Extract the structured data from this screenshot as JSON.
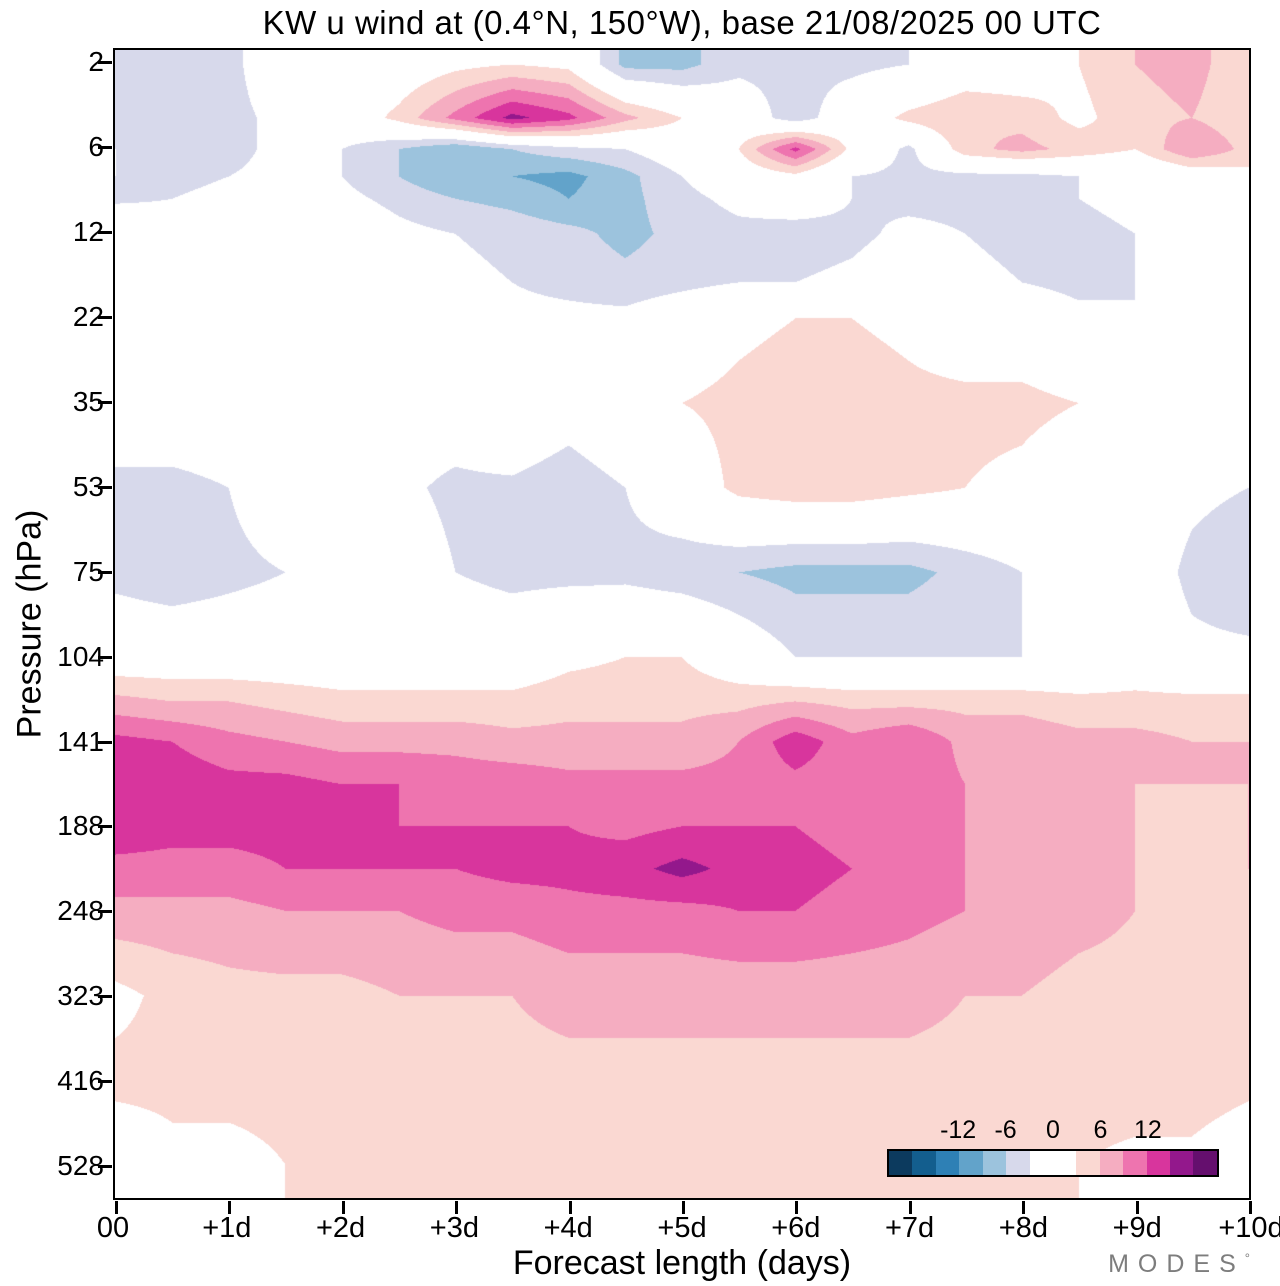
{
  "title": "KW u wind at (0.4°N, 150°W),  base 21/08/2025  00 UTC",
  "watermark": {
    "text": "MODES",
    "mark": "°"
  },
  "colors": {
    "background": "#ffffff",
    "axis": "#000000",
    "watermark": "#7d7d7d"
  },
  "chart_data": {
    "type": "heatmap",
    "title": "KW u wind at (0.4°N, 150°W),  base 21/08/2025  00 UTC",
    "xlabel": "Forecast length (days)",
    "ylabel": "Pressure (hPa)",
    "legend_position": "inside bottom-right",
    "grid": false,
    "x_ticks": {
      "values": [
        0,
        1,
        2,
        3,
        4,
        5,
        6,
        7,
        8,
        9,
        10
      ],
      "labels": [
        "00",
        "+1d",
        "+2d",
        "+3d",
        "+4d",
        "+5d",
        "+6d",
        "+7d",
        "+8d",
        "+9d",
        "+10d"
      ]
    },
    "y_ticks": {
      "pressures": [
        2,
        6,
        12,
        22,
        35,
        53,
        75,
        104,
        141,
        188,
        248,
        323,
        416,
        528
      ],
      "labels": [
        "2",
        "6",
        "12",
        "22",
        "35",
        "53",
        "75",
        "104",
        "141",
        "188",
        "248",
        "323",
        "416",
        "528"
      ],
      "scale": "model-level (log-pressure ticks evenly spaced)"
    },
    "xlim": [
      0,
      10
    ],
    "contour_interval": 3,
    "value_range": [
      -21,
      21
    ],
    "band_colors": [
      "#0c3a5e",
      "#135e8e",
      "#2e80b5",
      "#62a3ca",
      "#9cc3dd",
      "#d7d9eb",
      "#ffffff",
      "#ffffff",
      "#fad8d2",
      "#f5adc1",
      "#ee74af",
      "#d8359d",
      "#93188c",
      "#650f6e"
    ],
    "colorbar": {
      "tick_values": [
        -12,
        -6,
        0,
        6,
        12
      ],
      "tick_labels": [
        "-12",
        "-6",
        "0",
        "6",
        "12"
      ]
    },
    "x_days": [
      0,
      0.5,
      1,
      1.5,
      2,
      2.5,
      3,
      3.5,
      4,
      4.5,
      5,
      5.5,
      6,
      6.5,
      7,
      7.5,
      8,
      8.5,
      9,
      9.5,
      10
    ],
    "pressure_levels": [
      2,
      4,
      6,
      7.5,
      9,
      12,
      17,
      22,
      35,
      53,
      75,
      104,
      122,
      141,
      163,
      188,
      216,
      248,
      323,
      416,
      528
    ],
    "u_wind_values": [
      [
        -4,
        -4,
        -4,
        0,
        0,
        0,
        2,
        3,
        2,
        -7,
        -7,
        -4,
        -4,
        -4,
        -3,
        0,
        0,
        3,
        6,
        7,
        4
      ],
      [
        -4,
        -5,
        -4,
        -2,
        0,
        4,
        10,
        16,
        13,
        7,
        3,
        0,
        -5,
        0,
        4,
        6,
        5,
        2,
        5,
        6,
        4
      ],
      [
        -3,
        -6,
        -4,
        -2,
        -3,
        -6,
        -9,
        -6,
        -4,
        -3,
        0,
        3,
        13,
        2,
        -4,
        5,
        7,
        5,
        3,
        9,
        5
      ],
      [
        -3,
        -4,
        -3,
        -2,
        -3,
        -6,
        -9,
        -9,
        -10,
        -7,
        -3,
        0,
        2,
        -3,
        -4,
        -4,
        -4,
        -3,
        -2,
        0,
        2
      ],
      [
        -4,
        -3,
        -2,
        0,
        -2,
        -4,
        -6,
        -7,
        -9,
        -7,
        -4,
        -2,
        0,
        -3,
        -4,
        -4,
        -3,
        -3,
        -2,
        0,
        2
      ],
      [
        3,
        0,
        -2,
        -2,
        0,
        -2,
        -3,
        -4,
        -5,
        -7,
        -5,
        -4,
        -5,
        -4,
        -2,
        -3,
        -4,
        -4,
        -3,
        0,
        0
      ],
      [
        2,
        0,
        0,
        0,
        0,
        -2,
        -2,
        -3,
        -4,
        -5,
        -4,
        -3,
        -3,
        -2,
        0,
        -2,
        -3,
        -4,
        -3,
        2,
        2
      ],
      [
        0,
        0,
        0,
        0,
        0,
        0,
        0,
        -2,
        -2,
        -2,
        0,
        2,
        3,
        3,
        2,
        0,
        0,
        -2,
        -3,
        -2,
        0
      ],
      [
        0,
        0,
        0,
        0,
        0,
        0,
        0,
        3,
        0,
        3,
        3,
        4,
        5,
        5,
        4,
        4,
        4,
        3,
        0,
        -2,
        -3
      ],
      [
        -4,
        -4,
        -3,
        0,
        0,
        -2,
        -4,
        -4,
        -6,
        -3,
        0,
        4,
        5,
        5,
        4,
        3,
        2,
        0,
        0,
        -2,
        -3
      ],
      [
        -4,
        -5,
        -4,
        -3,
        -2,
        0,
        -3,
        -4,
        -4,
        -4,
        -5,
        -6,
        -7,
        -7,
        -7,
        -5,
        -3,
        0,
        0,
        -4,
        -6
      ],
      [
        0,
        0,
        0,
        0,
        0,
        0,
        0,
        0,
        2,
        3,
        3,
        0,
        -3,
        -3,
        -3,
        -3,
        -3,
        -2,
        0,
        -2,
        -2
      ],
      [
        7,
        6,
        6,
        5,
        4,
        4,
        4,
        4,
        5,
        5,
        5,
        5,
        6,
        5,
        5,
        5,
        5,
        4,
        4,
        4,
        4
      ],
      [
        13,
        12,
        10,
        9,
        8,
        8,
        8,
        7,
        7,
        7,
        7,
        9,
        14,
        10,
        12,
        8,
        8,
        7,
        7,
        6,
        6
      ],
      [
        14,
        14,
        13,
        13,
        12,
        12,
        11,
        11,
        10,
        10,
        10,
        10,
        11,
        10,
        11,
        9,
        8,
        7,
        6,
        6,
        6
      ],
      [
        14,
        13,
        13,
        13,
        12,
        12,
        12,
        12,
        12,
        11,
        12,
        12,
        12,
        11,
        10,
        9,
        8,
        7,
        6,
        5,
        6
      ],
      [
        11,
        11,
        11,
        12,
        12,
        12,
        12,
        13,
        13,
        14,
        16,
        14,
        13,
        12,
        11,
        9,
        8,
        7,
        6,
        5,
        6
      ],
      [
        8,
        8,
        8,
        9,
        9,
        9,
        10,
        10,
        11,
        11,
        11,
        12,
        12,
        11,
        10,
        9,
        8,
        7,
        6,
        5,
        5
      ],
      [
        2,
        4,
        5,
        5,
        5,
        6,
        6,
        6,
        7,
        7,
        7,
        7,
        7,
        7,
        7,
        6,
        6,
        5,
        5,
        5,
        4
      ],
      [
        4,
        4,
        4,
        4,
        4,
        4,
        4,
        5,
        5,
        5,
        5,
        5,
        5,
        5,
        5,
        5,
        5,
        5,
        5,
        5,
        4
      ],
      [
        0,
        2,
        2,
        3,
        3,
        3,
        4,
        4,
        4,
        4,
        4,
        4,
        4,
        4,
        3,
        3,
        3,
        3,
        2,
        2,
        0
      ]
    ]
  }
}
